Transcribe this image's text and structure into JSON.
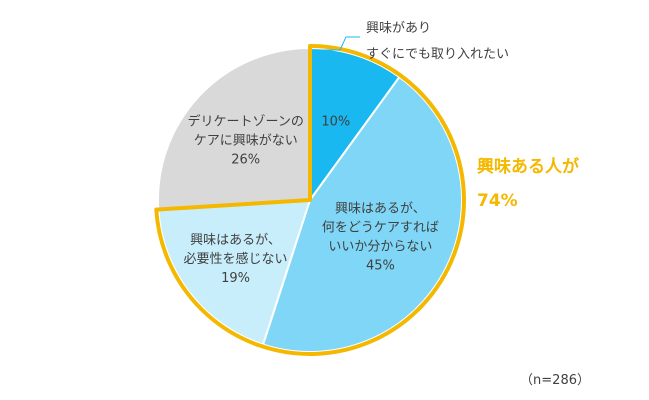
{
  "chart_data": {
    "type": "pie",
    "sample_size_label": "（n=286）",
    "highlight_label": [
      "興味ある人が",
      "74%"
    ],
    "highlight_color": "#f5b800",
    "slices": [
      {
        "name": "興味がありすぐにでも取り入れたい",
        "value": 10,
        "value_label": "10%",
        "color": "#1ab8f0",
        "label_lines": [
          "興味があり",
          "すぐにでも取り入れたい"
        ],
        "highlighted": true
      },
      {
        "name": "興味はあるが、何をどうケアすればいいか分からない",
        "value": 45,
        "value_label": "45%",
        "color": "#7fd6f6",
        "label_lines": [
          "興味はあるが、",
          "何をどうケアすれば",
          "いいか分からない"
        ],
        "highlighted": true
      },
      {
        "name": "興味はあるが、必要性を感じない",
        "value": 19,
        "value_label": "19%",
        "color": "#c9eefb",
        "label_lines": [
          "興味はあるが、",
          "必要性を感じない"
        ],
        "highlighted": true
      },
      {
        "name": "デリケートゾーンのケアに興味がない",
        "value": 26,
        "value_label": "26%",
        "color": "#d9d9d9",
        "label_lines": [
          "デリケートゾーンの",
          "ケアに興味がない"
        ],
        "highlighted": false
      }
    ]
  }
}
